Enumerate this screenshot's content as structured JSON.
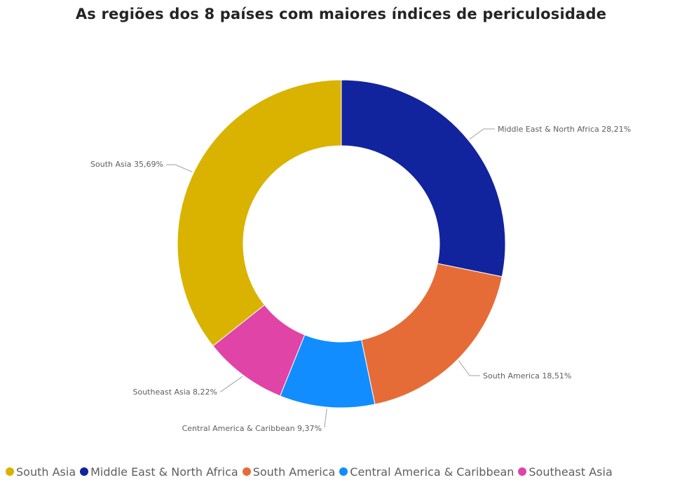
{
  "chart_data": {
    "type": "pie",
    "donut": true,
    "title": "As regiões dos 8 países com maiores índices de periculosidade",
    "categories": [
      "South Asia",
      "Middle East & North Africa",
      "South America",
      "Central America & Caribbean",
      "Southeast Asia"
    ],
    "values": [
      35.69,
      28.21,
      18.51,
      9.37,
      8.22
    ],
    "data_labels": [
      "South Asia 35,69%",
      "Middle East & North Africa 28,21%",
      "South America 18,51%",
      "Central America & Caribbean 9,37%",
      "Southeast Asia 8,22%"
    ],
    "colors": [
      "#d9b300",
      "#12239e",
      "#e66c37",
      "#118dff",
      "#e044a7"
    ],
    "legend": {
      "position": "bottom",
      "items": [
        "South Asia",
        "Middle East & North Africa",
        "South America",
        "Central America & Caribbean",
        "Southeast Asia"
      ]
    }
  }
}
